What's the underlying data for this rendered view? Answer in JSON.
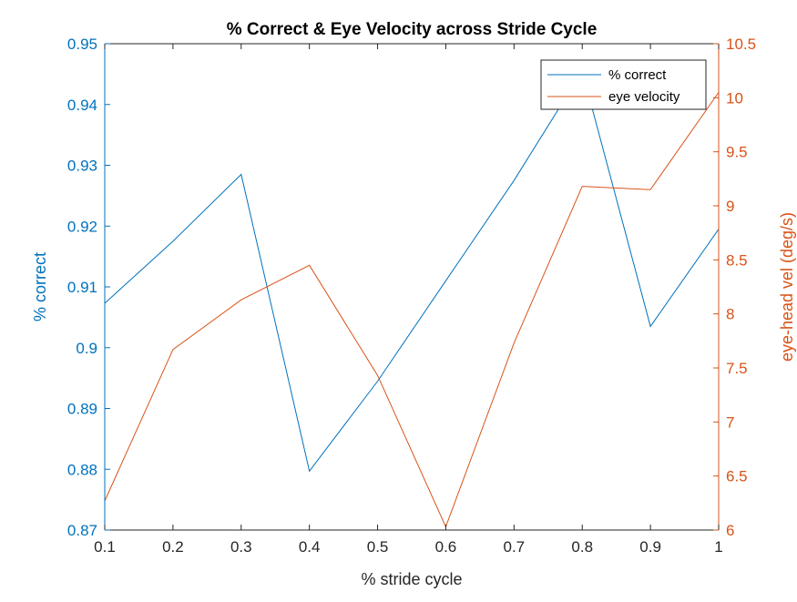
{
  "chart_data": {
    "type": "line",
    "title": "% Correct & Eye Velocity across Stride Cycle",
    "xlabel": "% stride cycle",
    "x": [
      0.1,
      0.2,
      0.3,
      0.4,
      0.5,
      0.6,
      0.7,
      0.8,
      0.9,
      1.0
    ],
    "xlim": [
      0.1,
      1.0
    ],
    "xticks": [
      "0.1",
      "0.2",
      "0.3",
      "0.4",
      "0.5",
      "0.6",
      "0.7",
      "0.8",
      "0.9",
      "1"
    ],
    "left_axis": {
      "label": "% correct",
      "ylim": [
        0.87,
        0.95
      ],
      "ticks": [
        "0.87",
        "0.88",
        "0.89",
        "0.9",
        "0.91",
        "0.92",
        "0.93",
        "0.94",
        "0.95"
      ],
      "color": "#0072BD"
    },
    "right_axis": {
      "label": "eye-head vel (deg/s)",
      "ylim": [
        6,
        10.5
      ],
      "ticks": [
        "6",
        "6.5",
        "7",
        "7.5",
        "8",
        "8.5",
        "9",
        "9.5",
        "10",
        "10.5"
      ],
      "color": "#D95319"
    },
    "series": [
      {
        "name": "% correct",
        "axis": "left",
        "color": "#0072BD",
        "values": [
          0.9073,
          0.9175,
          0.9285,
          0.8797,
          0.8945,
          0.911,
          0.9275,
          0.9455,
          0.9035,
          0.9195
        ]
      },
      {
        "name": "eye velocity",
        "axis": "right",
        "color": "#D95319",
        "values": [
          6.27,
          7.67,
          8.13,
          8.45,
          7.43,
          6.03,
          7.73,
          9.18,
          9.15,
          10.05
        ]
      }
    ],
    "legend": "top-right",
    "grid": false
  }
}
